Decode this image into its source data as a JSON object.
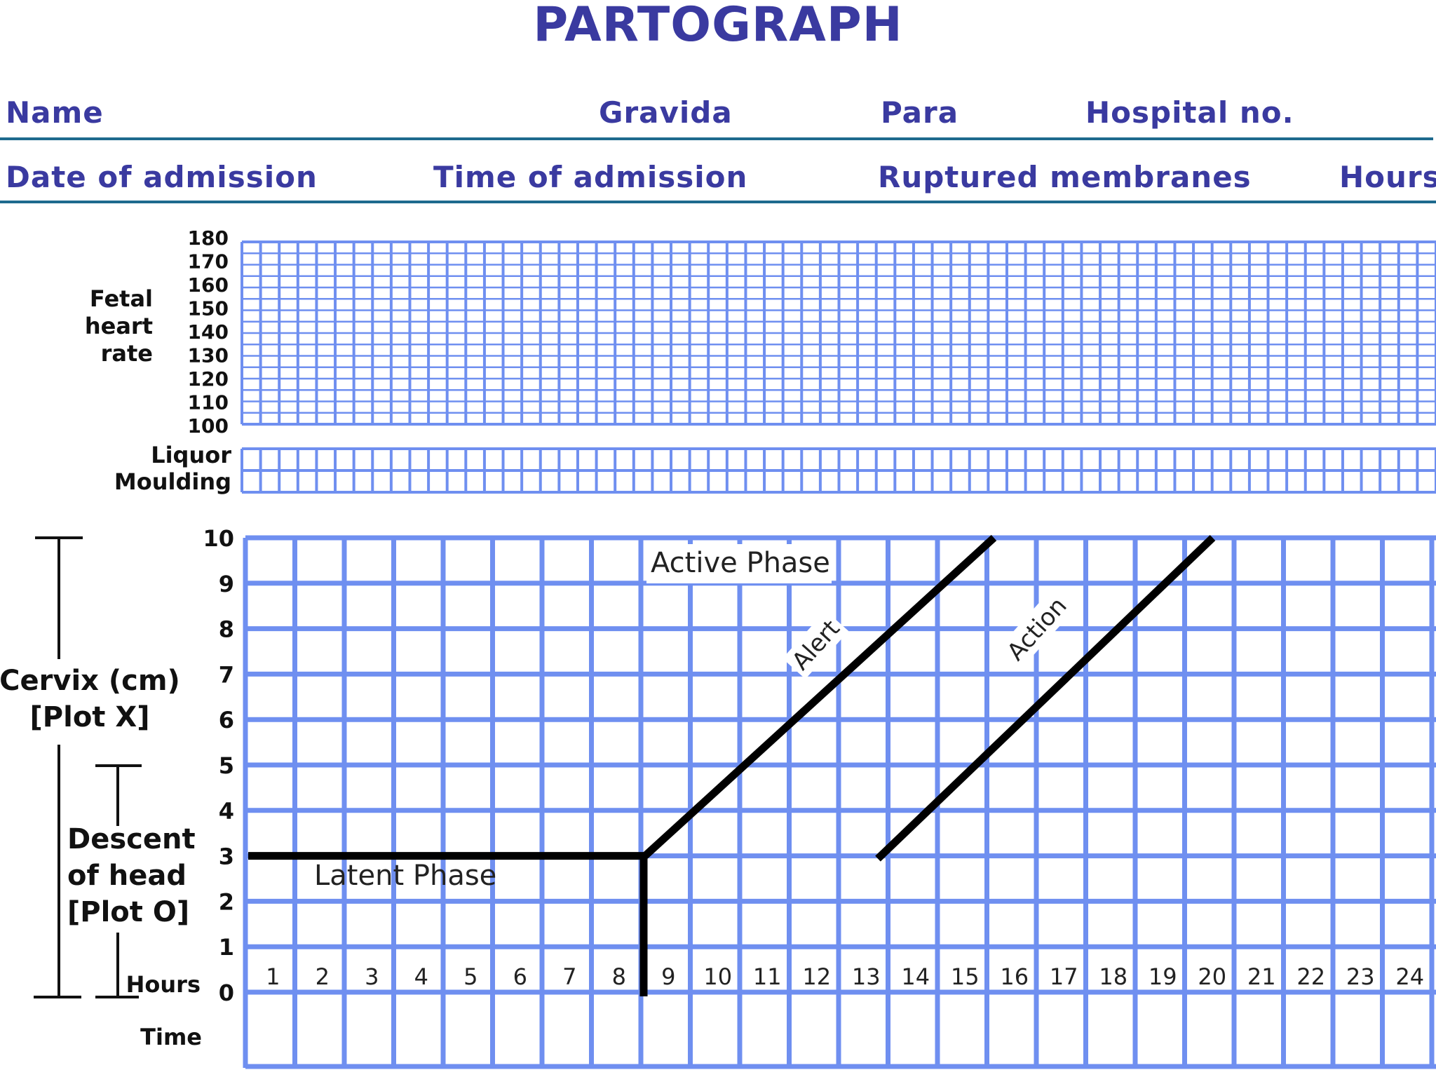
{
  "title": "PARTOGRAPH",
  "header": {
    "row1": {
      "name": "Name",
      "gravida": "Gravida",
      "para": "Para",
      "hospital_no": "Hospital no."
    },
    "row2": {
      "date_of_admission": "Date of admission",
      "time_of_admission": "Time of admission",
      "ruptured_membranes": "Ruptured membranes",
      "hours": "Hours"
    }
  },
  "colors": {
    "title": "#3a3aa0",
    "rule": "#1e6a8e",
    "grid": "#6f8ff0",
    "line": "#000000"
  },
  "fetal_heart_rate": {
    "label_lines": [
      "Fetal",
      "heart",
      "rate"
    ],
    "ticks": [
      "180",
      "170",
      "160",
      "150",
      "140",
      "130",
      "120",
      "110",
      "100"
    ]
  },
  "liquor_moulding": {
    "labels": [
      "Liquor",
      "Moulding"
    ]
  },
  "chart_data": {
    "type": "line",
    "x_label": "Hours",
    "time_label": "Time",
    "x_ticks": [
      "1",
      "2",
      "3",
      "4",
      "5",
      "6",
      "7",
      "8",
      "9",
      "10",
      "11",
      "12",
      "13",
      "14",
      "15",
      "16",
      "17",
      "18",
      "19",
      "20",
      "21",
      "22",
      "23",
      "24"
    ],
    "y_ticks": [
      "0",
      "1",
      "2",
      "3",
      "4",
      "5",
      "6",
      "7",
      "8",
      "9",
      "10"
    ],
    "ylim": [
      0,
      10
    ],
    "xlim": [
      0,
      24
    ],
    "cervix_label_lines": [
      "Cervix (cm)",
      "[Plot X]"
    ],
    "descent_label_lines": [
      "Descent",
      "of head",
      "[Plot O]"
    ],
    "latent_phase_label": "Latent Phase",
    "active_phase_label": "Active Phase",
    "latent_line": {
      "x": [
        0,
        8
      ],
      "y": [
        3,
        3
      ]
    },
    "divider_line": {
      "x": [
        8,
        8
      ],
      "y": [
        3,
        0
      ]
    },
    "series": [
      {
        "name": "Alert",
        "x": [
          8,
          15
        ],
        "y": [
          3,
          10
        ]
      },
      {
        "name": "Action",
        "x": [
          12,
          19
        ],
        "y": [
          3,
          10
        ]
      }
    ]
  }
}
